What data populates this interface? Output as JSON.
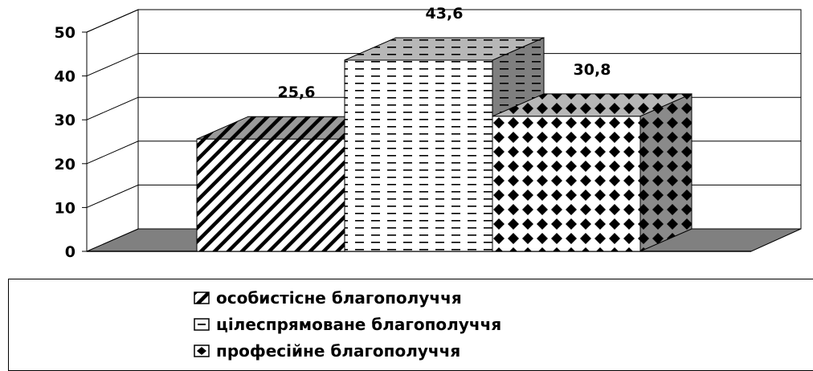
{
  "chart_data": {
    "type": "bar",
    "categories": [
      "особистісне благополуччя",
      "цілеспрямоване благополуччя",
      "професійне благополуччя"
    ],
    "values": [
      25.6,
      43.6,
      30.8
    ],
    "data_labels": [
      "25,6",
      "43,6",
      "30,8"
    ],
    "y_ticks": [
      "0",
      "10",
      "20",
      "30",
      "40",
      "50"
    ],
    "ylim": [
      0,
      50
    ],
    "grid": true,
    "three_d": true,
    "legend_position": "bottom",
    "colors": {
      "front": "#ffffff",
      "side": "#7f7f7f",
      "top": "#bfbfbf",
      "floor": "#808080"
    }
  },
  "legend": {
    "items": [
      {
        "label": "особистісне благополуччя",
        "pattern": "diagonal-hatch"
      },
      {
        "label": "цілеспрямоване благополуччя",
        "pattern": "dashes"
      },
      {
        "label": "професійне благополуччя",
        "pattern": "diamonds"
      }
    ]
  }
}
